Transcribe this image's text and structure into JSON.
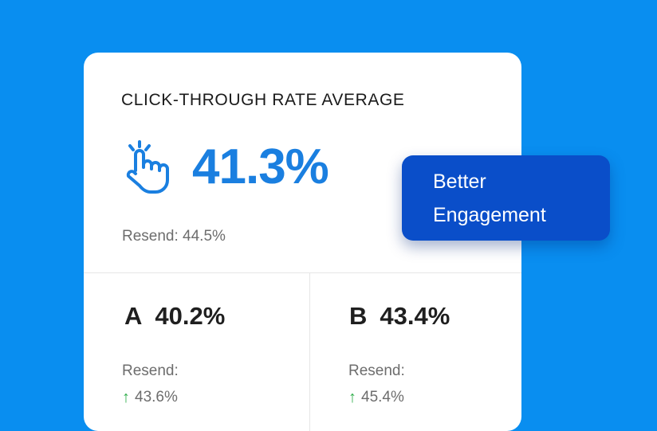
{
  "card": {
    "title": "CLICK-THROUGH RATE AVERAGE",
    "icon": "tap-hand-icon",
    "value": "41.3%",
    "resend": "Resend: 44.5%"
  },
  "variants": [
    {
      "letter": "A",
      "value": "40.2%",
      "resend_label": "Resend:",
      "resend_value": "43.6%",
      "trend": "up"
    },
    {
      "letter": "B",
      "value": "43.4%",
      "resend_label": "Resend:",
      "resend_value": "45.4%",
      "trend": "up"
    }
  ],
  "badge": {
    "line1": "Better",
    "line2": "Engagement"
  },
  "colors": {
    "background": "#098ef0",
    "accent": "#1a7fe0",
    "badge": "#0a4ec9",
    "trend_up": "#2fae4b"
  }
}
